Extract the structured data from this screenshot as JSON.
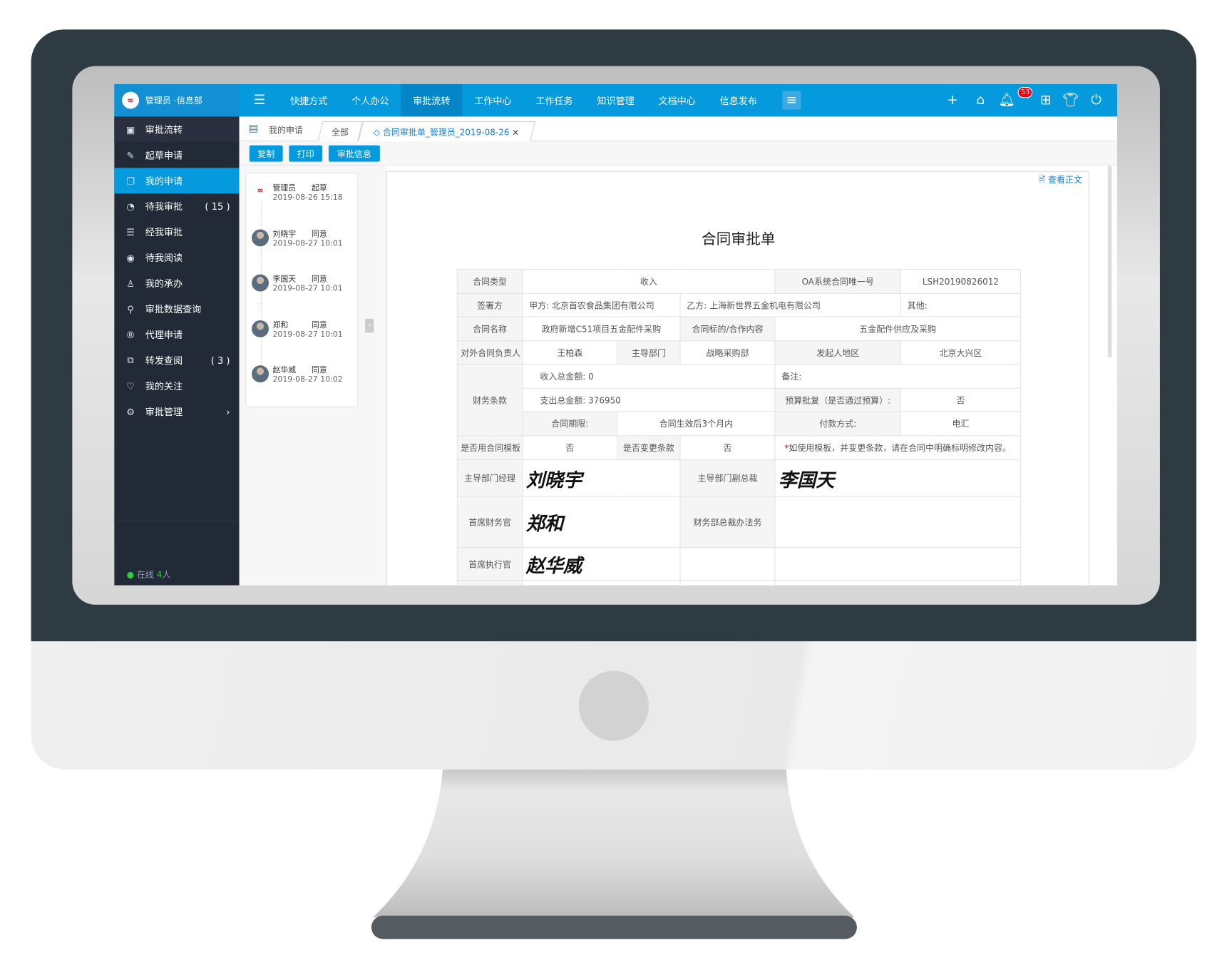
{
  "colors": {
    "accent": "#0599dd",
    "sidebar_bg": "#212a36",
    "badge": "#e60012",
    "online": "#2ecc40"
  },
  "header": {
    "logo_text": "∞",
    "user": "管理员 -信息部",
    "nav": [
      {
        "label": "快捷方式"
      },
      {
        "label": "个人办公"
      },
      {
        "label": "审批流转",
        "active": true
      },
      {
        "label": "工作中心"
      },
      {
        "label": "工作任务"
      },
      {
        "label": "知识管理"
      },
      {
        "label": "文档中心"
      },
      {
        "label": "信息发布"
      }
    ],
    "icons": [
      "menu-toggle-icon",
      "more-menu-icon",
      "plus-icon",
      "home-icon",
      "bell-icon",
      "apps-icon",
      "skin-icon",
      "power-icon"
    ],
    "notification_count": "53"
  },
  "sidebar": {
    "items": [
      {
        "label": "审批流转",
        "icon": "approval-flow-icon",
        "glyph": "▣",
        "type": "header"
      },
      {
        "label": "起草申请",
        "icon": "draft-icon",
        "glyph": "✎"
      },
      {
        "label": "我的申请",
        "icon": "my-request-icon",
        "glyph": "❐",
        "active": true
      },
      {
        "label": "待我审批",
        "icon": "pending-approval-icon",
        "glyph": "◔",
        "count": "( 15 )"
      },
      {
        "label": "经我审批",
        "icon": "approved-icon",
        "glyph": "☰"
      },
      {
        "label": "待我阅读",
        "icon": "eye-icon",
        "glyph": "◉"
      },
      {
        "label": "我的承办",
        "icon": "user-icon",
        "glyph": "♙"
      },
      {
        "label": "审批数据查询",
        "icon": "search-data-icon",
        "glyph": "⚲"
      },
      {
        "label": "代理申请",
        "icon": "proxy-icon",
        "glyph": "®"
      },
      {
        "label": "转发查阅",
        "icon": "forward-icon",
        "glyph": "⧉",
        "count": "( 3 )"
      },
      {
        "label": "我的关注",
        "icon": "heart-icon",
        "glyph": "♡"
      },
      {
        "label": "审批管理",
        "icon": "manage-icon",
        "glyph": "⚙",
        "arrow": "›"
      }
    ],
    "online_label": "在线",
    "online_count": "4",
    "online_unit": "人",
    "search_placeholder": ""
  },
  "tabs": {
    "section": "我的申请",
    "items": [
      {
        "label": "全部"
      },
      {
        "label": "合同审批单_管理员_2019-08-26",
        "closable": true
      }
    ],
    "close": "×"
  },
  "toolbar": {
    "copy": "复制",
    "print": "打印",
    "approval_info": "审批信息"
  },
  "timeline": [
    {
      "name": "管理员",
      "status": "起草",
      "date": "2019-08-26 15:18",
      "logo": true
    },
    {
      "name": "刘晓宇",
      "status": "同意",
      "date": "2019-08-27 10:01"
    },
    {
      "name": "李国天",
      "status": "同意",
      "date": "2019-08-27 10:01"
    },
    {
      "name": "郑和",
      "status": "同意",
      "date": "2019-08-27 10:01"
    },
    {
      "name": "赵华威",
      "status": "同意",
      "date": "2019-08-27 10:02"
    }
  ],
  "document": {
    "view_text": "查看正文",
    "title": "合同审批单",
    "rows": [
      [
        {
          "t": "合同类型",
          "c": "lbl"
        },
        {
          "t": "收入",
          "cs": 3
        },
        {
          "t": "OA系统合同唯一号",
          "c": "lbl"
        },
        {
          "t": "LSH20190826012"
        }
      ],
      [
        {
          "t": "签署方",
          "c": "lbl"
        },
        {
          "t": "甲方:    北京首农食品集团有限公司",
          "cs": 2,
          "c": "left"
        },
        {
          "t": "乙方:  上海新世界五金机电有限公司",
          "cs": 2,
          "c": "left"
        },
        {
          "t": "其他:",
          "c": "left"
        }
      ],
      [
        {
          "t": "合同名称",
          "c": "lbl"
        },
        {
          "t": "政府新增C51项目五金配件采购",
          "cs": 2
        },
        {
          "t": "合同标的/合作内容",
          "c": "lbl"
        },
        {
          "t": "五金配件供应及采购",
          "cs": 2
        }
      ],
      [
        {
          "t": "对外合同负责人",
          "c": "lbl"
        },
        {
          "t": "王柏森"
        },
        {
          "t": "主导部门",
          "c": "lbl"
        },
        {
          "t": "战略采购部"
        },
        {
          "t": "发起人地区",
          "c": "lbl"
        },
        {
          "t": "北京大兴区"
        }
      ],
      [
        {
          "t": "财务条款",
          "c": "lbl",
          "rs": 3
        },
        {
          "t": "收入总金额:    0",
          "cs": 3,
          "c": "left indent"
        },
        {
          "t": "备注:",
          "cs": 2,
          "c": "left"
        }
      ],
      [
        {
          "t": "支出总金额:    376950",
          "cs": 3,
          "c": "left indent"
        },
        {
          "t": "预算批复（是否通过预算）:",
          "c": "lbl"
        },
        {
          "t": "否"
        }
      ],
      [
        {
          "t": "合同期限:",
          "c": "lbl"
        },
        {
          "t": "合同生效后3个月内",
          "cs": 2
        },
        {
          "t": "付款方式:",
          "c": "lbl"
        },
        {
          "t": "电汇"
        }
      ],
      [
        {
          "t": "是否用合同模板",
          "c": "lbl"
        },
        {
          "t": "否"
        },
        {
          "t": "是否变更条款",
          "c": "lbl"
        },
        {
          "t": "否"
        },
        {
          "t": "如使用模板，并变更条款，请在合同中明确标明修改内容。",
          "cs": 2,
          "req": "*"
        }
      ],
      [
        {
          "t": "主导部门经理",
          "c": "lbl"
        },
        {
          "t": "刘晓宇",
          "cs": 2,
          "c": "sig"
        },
        {
          "t": "主导部门副总裁",
          "c": "lbl"
        },
        {
          "t": "李国天",
          "cs": 2,
          "c": "sig"
        }
      ],
      [
        {
          "t": "首席财务官",
          "c": "lbl"
        },
        {
          "t": "郑和",
          "cs": 2,
          "c": "sig"
        },
        {
          "t": "财务部总裁办法务",
          "c": "lbl"
        },
        {
          "t": "",
          "cs": 2
        }
      ],
      [
        {
          "t": "首席执行官",
          "c": "lbl"
        },
        {
          "t": "赵华威",
          "cs": 2,
          "c": "sig"
        },
        {
          "t": ""
        },
        {
          "t": "",
          "cs": 2
        }
      ],
      [
        {
          "t": "",
          "c": "lbl"
        },
        {
          "t": "",
          "cs": 2
        },
        {
          "t": ""
        },
        {
          "t": "",
          "cs": 2
        }
      ]
    ]
  }
}
